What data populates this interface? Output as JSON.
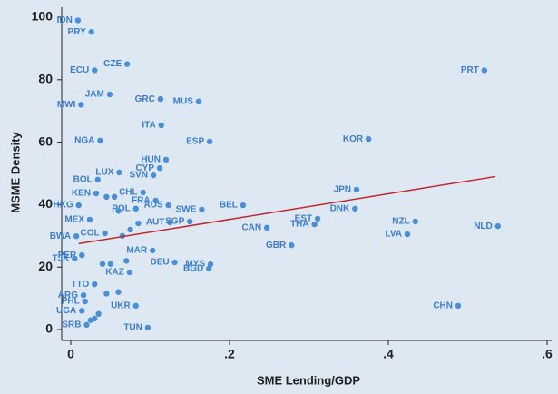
{
  "chart_data": {
    "type": "scatter",
    "xlabel": "SME Lending/GDP",
    "ylabel": "MSME Density",
    "xlim": [
      0,
      0.6
    ],
    "ylim": [
      0,
      100
    ],
    "xticks": [
      0,
      {
        "value": 0.2,
        "label": ".2"
      },
      {
        "value": 0.4,
        "label": ".4"
      },
      {
        "value": 0.6,
        "label": ".6"
      }
    ],
    "yticks": [
      0,
      20,
      40,
      60,
      80,
      100
    ],
    "color": "#4a8fd6",
    "label_color": "#3d7dc8",
    "labels": [
      "IDN",
      "PRY",
      "CZE",
      "ECU",
      "PRT",
      "JAM",
      "GRC",
      "MUS",
      "MWI",
      "ITA",
      "NGA",
      "ESP",
      "KOR",
      "HUN",
      "CYP",
      "LUX",
      "SVN",
      "BOL",
      "JPN",
      "CHL",
      "KEN",
      "FRA",
      "HKG",
      "BEL",
      "AUS",
      "SWE",
      "DNK",
      "POL",
      "EST",
      "MEX",
      "NZL",
      "NLD",
      "AUT",
      "SGP",
      "THA",
      "CAN",
      "LVA",
      "BWA",
      "COL",
      "GBR",
      "MAR",
      "PER",
      "TJK",
      "DEU",
      "MYS",
      "BGD",
      "KAZ",
      "TTO",
      "ARG",
      "PHL",
      "UKR",
      "CHN",
      "TUN",
      "UGA",
      "SRB",
      null,
      null,
      null,
      null,
      null,
      null,
      null,
      null,
      null,
      null,
      null,
      null,
      null,
      null
    ],
    "x": [
      0.009,
      0.026,
      0.071,
      0.03,
      0.521,
      0.049,
      0.113,
      0.161,
      0.013,
      0.114,
      0.037,
      0.175,
      0.375,
      0.12,
      0.112,
      0.061,
      0.104,
      0.034,
      0.36,
      0.091,
      0.032,
      0.107,
      0.01,
      0.217,
      0.123,
      0.165,
      0.358,
      0.082,
      0.311,
      0.024,
      0.434,
      0.538,
      0.125,
      0.15,
      0.307,
      0.247,
      0.424,
      0.007,
      0.043,
      0.278,
      0.103,
      0.014,
      0.005,
      0.131,
      0.176,
      0.174,
      0.074,
      0.03,
      0.016,
      0.018,
      0.082,
      0.488,
      0.097,
      0.014,
      0.02,
      0.045,
      0.055,
      0.06,
      0.065,
      0.04,
      0.05,
      0.07,
      0.085,
      0.035,
      0.025,
      0.03,
      0.06,
      0.045,
      0.075
    ],
    "y": [
      99,
      95.3,
      85,
      83,
      83,
      75.3,
      73.8,
      73,
      72,
      65.4,
      60.5,
      60.2,
      61,
      54.4,
      51.7,
      50.3,
      49.4,
      48,
      44.8,
      43.9,
      43.6,
      41.3,
      39.8,
      39.8,
      39.8,
      38.4,
      38.7,
      38.7,
      35.5,
      35.2,
      34.6,
      33.1,
      34.3,
      34.6,
      33.7,
      32.6,
      30.5,
      29.9,
      30.8,
      27,
      25.3,
      23.8,
      22.7,
      21.5,
      20.9,
      19.5,
      18.3,
      14.5,
      11,
      9,
      7.6,
      7.6,
      0.6,
      6,
      1.5,
      42.5,
      42.5,
      38,
      30,
      21,
      21,
      22,
      34,
      5,
      3,
      3.5,
      12,
      11.5,
      32
    ],
    "trend_line": {
      "x": [
        0.01,
        0.535
      ],
      "y": [
        27.5,
        49
      ],
      "color": "#c0262d"
    }
  }
}
